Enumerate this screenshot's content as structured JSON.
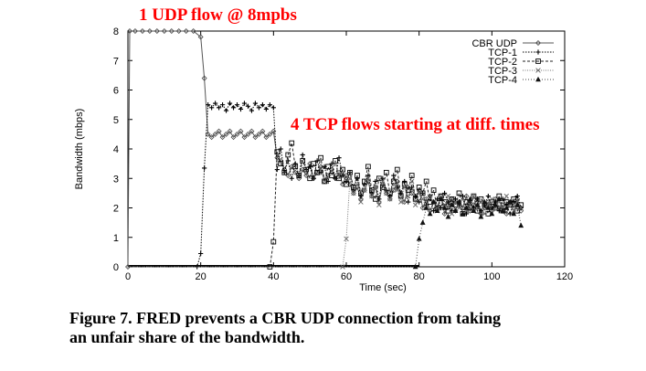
{
  "annotations": {
    "top": "1 UDP flow @ 8mpbs",
    "middle": "4 TCP flows starting at diff. times"
  },
  "caption": {
    "line1": "Figure 7.  FRED prevents a CBR UDP connection from taking",
    "line2": "an unfair share of the bandwidth."
  },
  "chart_data": {
    "type": "line",
    "title": "",
    "xlabel": "Time (sec)",
    "ylabel": "Bandwidth (mbps)",
    "xlim": [
      0,
      120
    ],
    "ylim": [
      0,
      8
    ],
    "x_ticks": [
      0,
      20,
      40,
      60,
      80,
      100,
      120
    ],
    "y_ticks": [
      0,
      1,
      2,
      3,
      4,
      5,
      6,
      7,
      8
    ],
    "grid": false,
    "legend_position": "top-right",
    "legend": [
      "CBR UDP",
      "TCP-1",
      "TCP-2",
      "TCP-3",
      "TCP-4"
    ],
    "series": [
      {
        "name": "CBR UDP",
        "marker": "diamond",
        "x": [
          0,
          0.5,
          2,
          4,
          6,
          8,
          10,
          12,
          14,
          16,
          18,
          20,
          21,
          22,
          23,
          24,
          25,
          26,
          27,
          28,
          29,
          30,
          31,
          32,
          33,
          34,
          35,
          36,
          37,
          38,
          39,
          40,
          41,
          42,
          43,
          44,
          45,
          46,
          47,
          48,
          49,
          50,
          51,
          52,
          53,
          54,
          55,
          56,
          57,
          58,
          59,
          60,
          61,
          62,
          63,
          64,
          65,
          66,
          67,
          68,
          69,
          70,
          71,
          72,
          73,
          74,
          75,
          76,
          77,
          78,
          79,
          80,
          81,
          82,
          83,
          84,
          85,
          86,
          87,
          88,
          89,
          90,
          91,
          92,
          93,
          94,
          95,
          96,
          97,
          98,
          99,
          100,
          101,
          102,
          103,
          104,
          105,
          106,
          107,
          108
        ],
        "y": [
          0,
          8,
          8,
          8,
          8,
          8,
          8,
          8,
          8,
          8,
          8,
          7.8,
          6.4,
          4.5,
          4.4,
          4.5,
          4.6,
          4.4,
          4.5,
          4.6,
          4.4,
          4.5,
          4.6,
          4.4,
          4.5,
          4.6,
          4.4,
          4.5,
          4.6,
          4.4,
          4.5,
          4.6,
          3.7,
          3.6,
          3.3,
          3.1,
          3.4,
          3.2,
          3.0,
          3.3,
          3.1,
          3.5,
          3.0,
          3.2,
          3.4,
          2.9,
          3.1,
          3.3,
          3.0,
          3.2,
          2.8,
          3.1,
          2.8,
          2.5,
          2.7,
          2.3,
          2.6,
          2.9,
          2.4,
          2.7,
          2.2,
          2.8,
          2.5,
          2.3,
          2.6,
          2.9,
          2.4,
          2.2,
          2.7,
          2.5,
          2.3,
          2.6,
          2.0,
          2.3,
          1.9,
          2.2,
          2.0,
          2.4,
          1.8,
          2.1,
          2.3,
          1.9,
          2.2,
          2.0,
          2.4,
          1.9,
          2.1,
          2.3,
          1.8,
          2.0,
          2.2,
          1.9,
          2.3,
          2.0,
          2.1,
          1.8,
          2.2,
          2.0,
          2.3,
          1.9
        ]
      },
      {
        "name": "TCP-1",
        "marker": "plus",
        "x": [
          0,
          5,
          10,
          15,
          19,
          20,
          21,
          22,
          23,
          24,
          25,
          26,
          27,
          28,
          29,
          30,
          31,
          32,
          33,
          34,
          35,
          36,
          37,
          38,
          39,
          40,
          41,
          42,
          43,
          44,
          45,
          46,
          47,
          48,
          49,
          50,
          51,
          52,
          53,
          54,
          55,
          56,
          57,
          58,
          59,
          60,
          61,
          62,
          63,
          64,
          65,
          66,
          67,
          68,
          69,
          70,
          71,
          72,
          73,
          74,
          75,
          76,
          77,
          78,
          79,
          80,
          81,
          82,
          83,
          84,
          85,
          86,
          87,
          88,
          89,
          90,
          91,
          92,
          93,
          94,
          95,
          96,
          97,
          98,
          99,
          100,
          101,
          102,
          103,
          104,
          105,
          106,
          107,
          108
        ],
        "y": [
          0,
          0,
          0,
          0,
          0,
          0.45,
          3.35,
          5.5,
          5.4,
          5.55,
          5.4,
          5.5,
          5.3,
          5.55,
          5.4,
          5.5,
          5.35,
          5.55,
          5.45,
          5.3,
          5.55,
          5.4,
          5.5,
          5.35,
          5.5,
          5.4,
          3.3,
          4.0,
          3.2,
          3.6,
          3.0,
          3.5,
          3.1,
          3.8,
          3.3,
          3.4,
          3.0,
          3.6,
          3.2,
          3.4,
          2.9,
          3.5,
          3.0,
          3.7,
          3.1,
          2.9,
          3.2,
          2.6,
          3.0,
          2.4,
          2.8,
          3.1,
          2.5,
          2.9,
          2.3,
          3.0,
          2.6,
          2.4,
          3.1,
          2.7,
          2.5,
          2.9,
          2.2,
          2.7,
          2.4,
          2.2,
          2.5,
          2.1,
          2.4,
          1.9,
          2.3,
          2.0,
          2.5,
          2.2,
          1.9,
          2.3,
          2.1,
          2.4,
          1.8,
          2.2,
          2.0,
          2.3,
          1.9,
          2.1,
          2.4,
          2.0,
          2.2,
          1.9,
          2.3,
          2.1,
          1.8,
          2.2,
          2.4,
          2.0
        ]
      },
      {
        "name": "TCP-2",
        "marker": "square",
        "x": [
          0,
          10,
          20,
          30,
          39,
          40,
          41,
          42,
          43,
          44,
          45,
          46,
          47,
          48,
          49,
          50,
          51,
          52,
          53,
          54,
          55,
          56,
          57,
          58,
          59,
          60,
          61,
          62,
          63,
          64,
          65,
          66,
          67,
          68,
          69,
          70,
          71,
          72,
          73,
          74,
          75,
          76,
          77,
          78,
          79,
          80,
          81,
          82,
          83,
          84,
          85,
          86,
          87,
          88,
          89,
          90,
          91,
          92,
          93,
          94,
          95,
          96,
          97,
          98,
          99,
          100,
          101,
          102,
          103,
          104,
          105,
          106,
          107,
          108
        ],
        "y": [
          0,
          0,
          0,
          0,
          0,
          0.85,
          3.9,
          3.5,
          3.2,
          3.8,
          4.2,
          3.4,
          3.1,
          3.6,
          3.3,
          3.0,
          3.5,
          3.2,
          3.7,
          2.9,
          3.4,
          3.1,
          3.6,
          3.0,
          3.3,
          2.8,
          3.2,
          2.7,
          3.1,
          2.5,
          2.9,
          3.4,
          2.6,
          2.3,
          3.0,
          2.7,
          3.2,
          2.5,
          2.9,
          3.3,
          2.4,
          2.8,
          2.6,
          3.1,
          2.3,
          2.7,
          2.5,
          2.9,
          2.2,
          2.6,
          2.0,
          2.4,
          2.2,
          1.9,
          2.3,
          2.1,
          2.5,
          1.8,
          2.2,
          2.0,
          2.4,
          1.9,
          2.3,
          2.1,
          1.8,
          2.2,
          2.0,
          2.4,
          1.9,
          2.2,
          2.1,
          2.3,
          1.9,
          2.1
        ]
      },
      {
        "name": "TCP-3",
        "marker": "cross",
        "x": [
          0,
          15,
          30,
          45,
          59,
          60,
          61,
          62,
          63,
          64,
          65,
          66,
          67,
          68,
          69,
          70,
          71,
          72,
          73,
          74,
          75,
          76,
          77,
          78,
          79,
          80,
          81,
          82,
          83,
          84,
          85,
          86,
          87,
          88,
          89,
          90,
          91,
          92,
          93,
          94,
          95,
          96,
          97,
          98,
          99,
          100,
          101,
          102,
          103,
          104,
          105,
          106,
          107,
          108
        ],
        "y": [
          0,
          0,
          0,
          0,
          0,
          0.95,
          3.0,
          2.5,
          2.8,
          2.2,
          2.6,
          3.0,
          2.4,
          2.7,
          2.1,
          2.9,
          2.5,
          2.3,
          2.8,
          2.6,
          2.2,
          2.7,
          2.4,
          2.9,
          2.1,
          2.5,
          2.3,
          2.0,
          2.4,
          2.2,
          1.9,
          2.3,
          2.1,
          2.4,
          1.8,
          2.2,
          2.0,
          2.3,
          1.9,
          2.1,
          2.4,
          2.0,
          2.2,
          1.8,
          2.1,
          2.3,
          2.0,
          2.2,
          1.9,
          2.4,
          2.1,
          1.9,
          2.2,
          2.0
        ]
      },
      {
        "name": "TCP-4",
        "marker": "triangle",
        "x": [
          0,
          20,
          40,
          60,
          79,
          80,
          81,
          82,
          83,
          84,
          85,
          86,
          87,
          88,
          89,
          90,
          91,
          92,
          93,
          94,
          95,
          96,
          97,
          98,
          99,
          100,
          101,
          102,
          103,
          104,
          105,
          106,
          107,
          108
        ],
        "y": [
          0,
          0,
          0,
          0,
          0,
          0.95,
          1.5,
          2.0,
          1.8,
          2.2,
          1.9,
          2.3,
          2.0,
          1.7,
          2.1,
          1.9,
          2.2,
          1.8,
          2.0,
          2.3,
          1.9,
          2.1,
          1.7,
          2.2,
          2.0,
          1.8,
          2.1,
          2.3,
          1.9,
          2.0,
          2.2,
          1.8,
          2.1,
          1.4
        ]
      }
    ]
  }
}
